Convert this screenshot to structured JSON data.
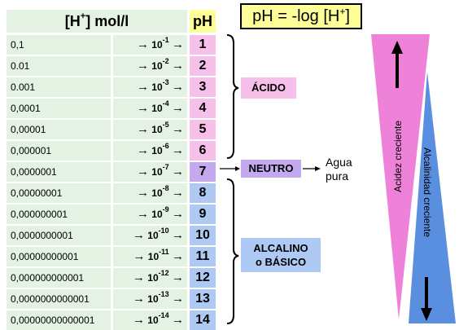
{
  "header": {
    "concentration_label_pre": "[H",
    "concentration_label_sup": "+",
    "concentration_label_post": "] mol/l",
    "ph_label": "pH",
    "formula_pre": "pH = -log [H",
    "formula_sup": "+",
    "formula_post": "]"
  },
  "rows": [
    {
      "conc": "0,1",
      "exp": "-1",
      "ph": "1"
    },
    {
      "conc": "0.01",
      "exp": "-2",
      "ph": "2"
    },
    {
      "conc": "0.001",
      "exp": "-3",
      "ph": "3"
    },
    {
      "conc": "0,0001",
      "exp": "-4",
      "ph": "4"
    },
    {
      "conc": "0,00001",
      "exp": "-5",
      "ph": "5"
    },
    {
      "conc": "0,000001",
      "exp": "-6",
      "ph": "6"
    },
    {
      "conc": "0,0000001",
      "exp": "-7",
      "ph": "7"
    },
    {
      "conc": "0,00000001",
      "exp": "-8",
      "ph": "8"
    },
    {
      "conc": "0,000000001",
      "exp": "-9",
      "ph": "9"
    },
    {
      "conc": "0,0000000001",
      "exp": "-10",
      "ph": "10"
    },
    {
      "conc": "0,00000000001",
      "exp": "-11",
      "ph": "11"
    },
    {
      "conc": "0,000000000001",
      "exp": "-12",
      "ph": "12"
    },
    {
      "conc": "0,0000000000001",
      "exp": "-13",
      "ph": "13"
    },
    {
      "conc": "0,00000000000001",
      "exp": "-14",
      "ph": "14"
    }
  ],
  "base_label": "10",
  "arrow_glyph": "→",
  "labels": {
    "acid": "ÁCIDO",
    "neutral": "NEUTRO",
    "alkaline_line1": "ALCALINO",
    "alkaline_line2": "o BÁSICO",
    "water_line1": "Agua",
    "water_line2": "pura"
  },
  "triangles": {
    "acidity_label": "Acidez creciente",
    "alkalinity_label": "Alcalinidad creciente"
  },
  "colors": {
    "table_bg": "#e3f2e3",
    "acid_ph": "#f7c0ea",
    "neutral_ph": "#c4a9ee",
    "alkaline_ph": "#aec9f4",
    "header_yellow": "#ffff99",
    "acid_triangle": "#ee82d9",
    "alkaline_triangle": "#5a8fe0"
  }
}
